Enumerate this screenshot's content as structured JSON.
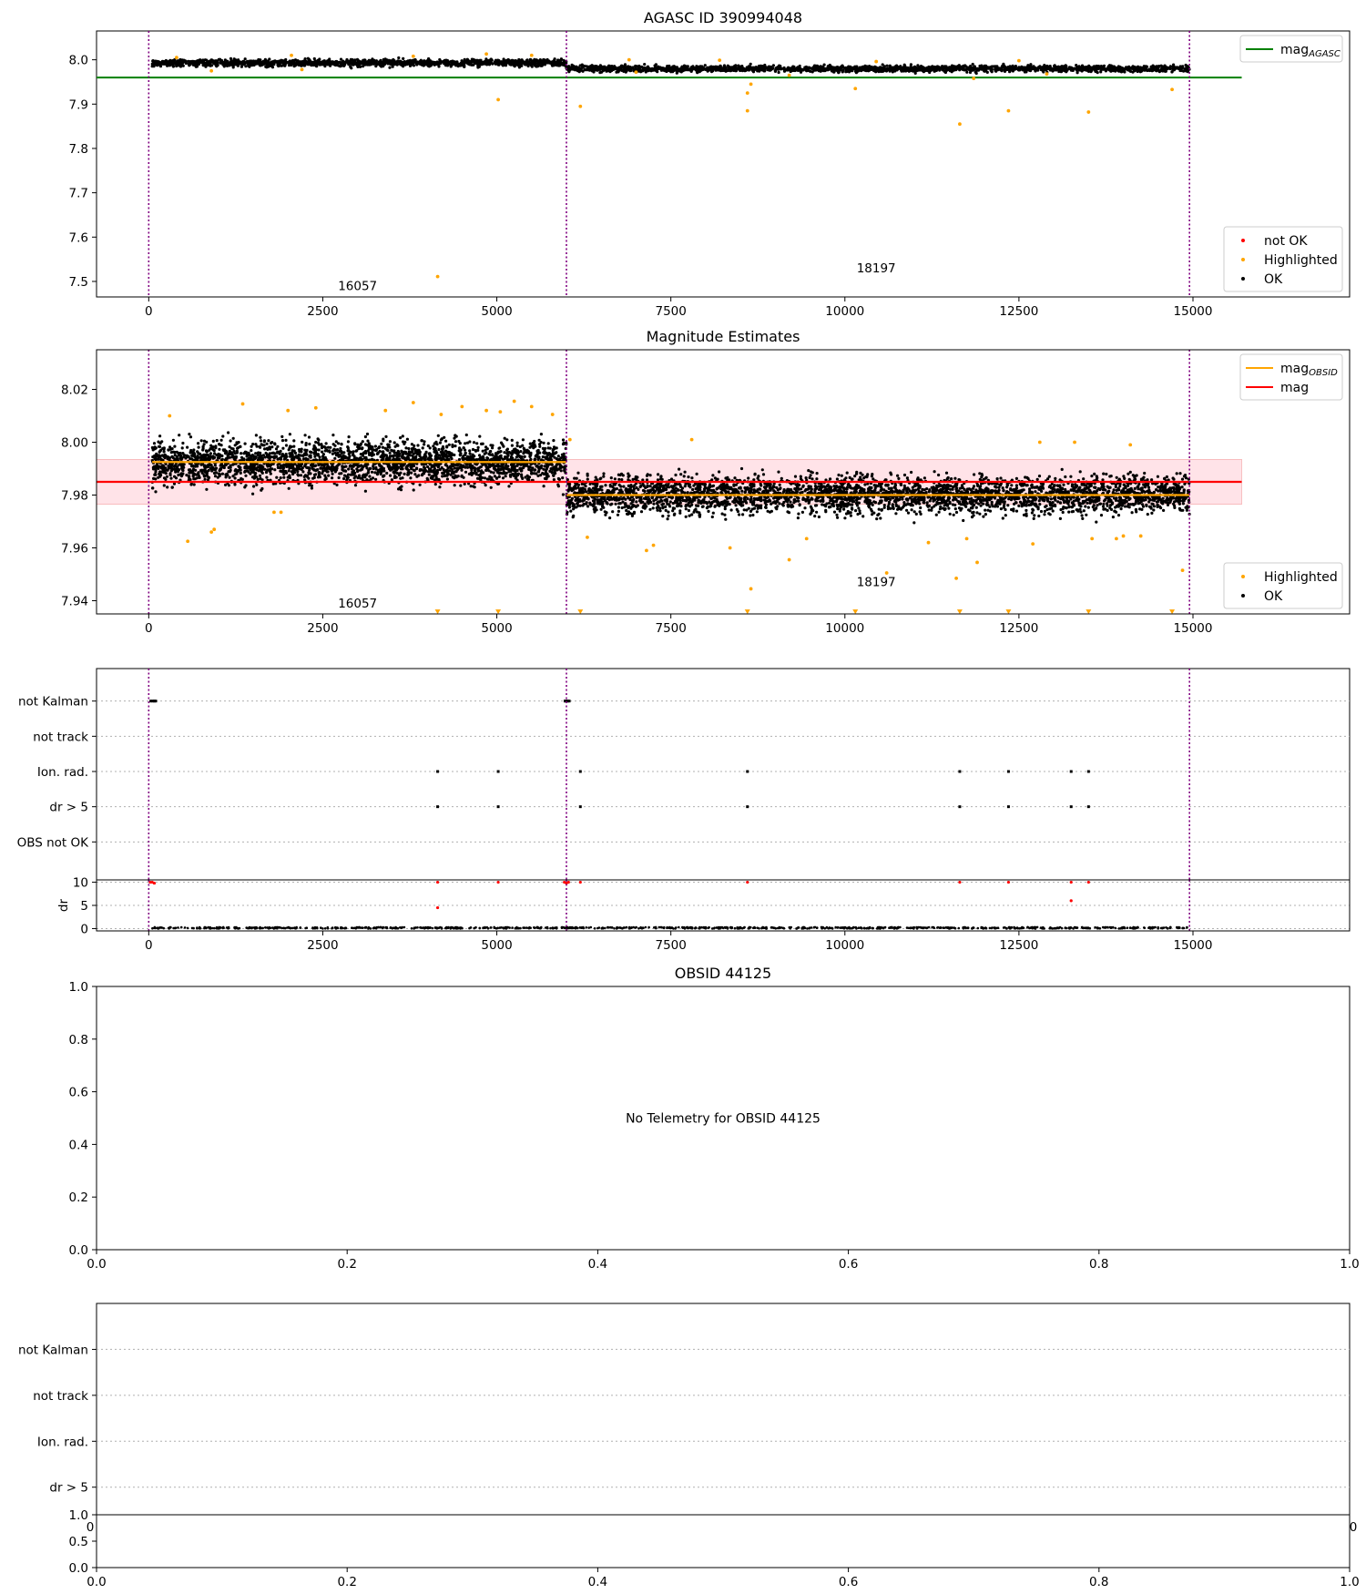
{
  "colors": {
    "ok": "#000000",
    "highlighted": "#ffa500",
    "not_ok": "#ff0000",
    "mag_agasc": "#008000",
    "mag": "#ff0000",
    "mag_obsid": "#ffa500",
    "band": "#ffc0cb",
    "obs_boundary": "#800080",
    "grid": "#b0b0b0"
  },
  "chart_data": [
    {
      "type": "scatter",
      "title": "AGASC ID 390994048",
      "xlim": [
        -750,
        17250
      ],
      "ylim": [
        7.465,
        8.065
      ],
      "xticks": [
        0,
        2500,
        5000,
        7500,
        10000,
        12500,
        15000
      ],
      "xtick_labels": [
        "0",
        "2500",
        "5000",
        "7500",
        "10000",
        "12500",
        "15000"
      ],
      "yticks": [
        7.5,
        7.6,
        7.7,
        7.8,
        7.9,
        8.0
      ],
      "ytick_labels": [
        "7.5",
        "7.6",
        "7.7",
        "7.8",
        "7.9",
        "8.0"
      ],
      "legends": [
        {
          "placement": "upper-right",
          "entries": [
            {
              "label": "mag",
              "sub": "AGASC",
              "color": "#008000",
              "marker": "line"
            }
          ]
        },
        {
          "placement": "lower-right",
          "entries": [
            {
              "label": "not OK",
              "color": "#ff0000",
              "marker": "dot"
            },
            {
              "label": "Highlighted",
              "color": "#ffa500",
              "marker": "dot"
            },
            {
              "label": "OK",
              "color": "#000000",
              "marker": "dot"
            }
          ]
        }
      ],
      "hlines": [
        {
          "y": 7.96,
          "x": [
            -750,
            15700
          ],
          "color": "#008000",
          "name": "mag_AGASC"
        }
      ],
      "vlines": [
        0,
        6000,
        14950
      ],
      "obs_labels": [
        {
          "text": "16057",
          "x": 3000,
          "y": 7.48
        },
        {
          "text": "18197",
          "x": 10450,
          "y": 7.52
        }
      ],
      "series": [
        {
          "name": "OK",
          "color": "#000000",
          "segments": [
            {
              "x": [
                50,
                6000
              ],
              "y_center": 7.993,
              "y_spread": 0.013
            },
            {
              "x": [
                6000,
                14950
              ],
              "y_center": 7.98,
              "y_spread": 0.012
            }
          ]
        },
        {
          "name": "Highlighted",
          "color": "#ffa500",
          "points": [
            [
              5020,
              7.91
            ],
            [
              6200,
              7.895
            ],
            [
              8600,
              7.925
            ],
            [
              8600,
              7.885
            ],
            [
              8650,
              7.945
            ],
            [
              10150,
              7.935
            ],
            [
              11650,
              7.855
            ],
            [
              12350,
              7.885
            ],
            [
              13500,
              7.882
            ],
            [
              14700,
              7.933
            ],
            [
              4150,
              7.511
            ],
            [
              900,
              7.975
            ],
            [
              2200,
              7.978
            ],
            [
              9200,
              7.965
            ],
            [
              11850,
              7.958
            ],
            [
              7000,
              7.972
            ],
            [
              12900,
              7.968
            ],
            [
              400,
              8.005
            ],
            [
              2050,
              8.01
            ],
            [
              3800,
              8.008
            ],
            [
              4850,
              8.013
            ],
            [
              5500,
              8.01
            ],
            [
              6900,
              8.0
            ],
            [
              8200,
              7.999
            ],
            [
              10450,
              7.996
            ],
            [
              12500,
              7.998
            ]
          ]
        }
      ]
    },
    {
      "type": "scatter",
      "title": "Magnitude Estimates",
      "xlim": [
        -750,
        17250
      ],
      "ylim": [
        7.935,
        8.035
      ],
      "xticks": [
        0,
        2500,
        5000,
        7500,
        10000,
        12500,
        15000
      ],
      "xtick_labels": [
        "0",
        "2500",
        "5000",
        "7500",
        "10000",
        "12500",
        "15000"
      ],
      "yticks": [
        7.94,
        7.96,
        7.98,
        8.0,
        8.02
      ],
      "ytick_labels": [
        "7.94",
        "7.96",
        "7.98",
        "8.00",
        "8.02"
      ],
      "legends": [
        {
          "placement": "upper-right",
          "entries": [
            {
              "label": "mag",
              "sub": "OBSID",
              "color": "#ffa500",
              "marker": "line"
            },
            {
              "label": "mag",
              "color": "#ff0000",
              "marker": "line"
            }
          ]
        },
        {
          "placement": "lower-right",
          "entries": [
            {
              "label": "Highlighted",
              "color": "#ffa500",
              "marker": "dot"
            },
            {
              "label": "OK",
              "color": "#000000",
              "marker": "dot"
            }
          ]
        }
      ],
      "band": {
        "y": [
          7.9765,
          7.9935
        ],
        "x": [
          -750,
          15700
        ],
        "color": "#ffc0cb"
      },
      "hlines": [
        {
          "y": 7.985,
          "x": [
            -750,
            15700
          ],
          "color": "#ff0000",
          "name": "mag"
        },
        {
          "y": 7.9925,
          "x": [
            50,
            6000
          ],
          "color": "#ffa500",
          "name": "mag_OBSID"
        },
        {
          "y": 7.98,
          "x": [
            6000,
            14950
          ],
          "color": "#ffa500",
          "name": "mag_OBSID"
        }
      ],
      "vlines": [
        0,
        6000,
        14950
      ],
      "obs_labels": [
        {
          "text": "16057",
          "x": 3000,
          "y": 7.9375
        },
        {
          "text": "18197",
          "x": 10450,
          "y": 7.9455
        }
      ],
      "series": [
        {
          "name": "OK",
          "color": "#000000",
          "segments": [
            {
              "x": [
                50,
                6000
              ],
              "y_center": 7.9925,
              "y_spread": 0.0135
            },
            {
              "x": [
                6000,
                14950
              ],
              "y_center": 7.98,
              "y_spread": 0.012
            }
          ]
        },
        {
          "name": "Highlighted",
          "color": "#ffa500",
          "points": [
            [
              560,
              7.9625
            ],
            [
              900,
              7.966
            ],
            [
              940,
              7.967
            ],
            [
              1800,
              7.9735
            ],
            [
              1900,
              7.9735
            ],
            [
              6300,
              7.964
            ],
            [
              7150,
              7.959
            ],
            [
              7250,
              7.961
            ],
            [
              8350,
              7.96
            ],
            [
              8650,
              7.9445
            ],
            [
              9200,
              7.9555
            ],
            [
              9450,
              7.9635
            ],
            [
              10600,
              7.9505
            ],
            [
              11600,
              7.9485
            ],
            [
              11750,
              7.9635
            ],
            [
              11900,
              7.9545
            ],
            [
              12700,
              7.9615
            ],
            [
              13550,
              7.9635
            ],
            [
              14000,
              7.9645
            ],
            [
              14850,
              7.9515
            ],
            [
              11200,
              7.962
            ],
            [
              13900,
              7.9635
            ],
            [
              14250,
              7.9645
            ],
            [
              1350,
              8.0145
            ],
            [
              2000,
              8.012
            ],
            [
              2400,
              8.013
            ],
            [
              3400,
              8.012
            ],
            [
              3800,
              8.015
            ],
            [
              4200,
              8.0105
            ],
            [
              4500,
              8.0135
            ],
            [
              4850,
              8.012
            ],
            [
              5050,
              8.0115
            ],
            [
              5250,
              8.0155
            ],
            [
              5500,
              8.0135
            ],
            [
              5800,
              8.0105
            ],
            [
              7800,
              8.001
            ],
            [
              12800,
              8.0
            ],
            [
              13300,
              8.0
            ],
            [
              14100,
              7.999
            ],
            [
              6050,
              8.001
            ],
            [
              300,
              8.01
            ]
          ]
        },
        {
          "name": "Highlighted (below range)",
          "color": "#ffa500",
          "marker": "triangle-down",
          "x": [
            4150,
            5020,
            6200,
            8600,
            10150,
            11650,
            12350,
            13500,
            14700
          ],
          "y": 7.936
        }
      ]
    },
    {
      "type": "scatter",
      "title": "",
      "xlim": [
        -750,
        17250
      ],
      "categories": [
        "not Kalman",
        "not track",
        "Ion. rad.",
        "dr > 5",
        "OBS not OK"
      ],
      "flag_points": {
        "not Kalman": [
          30,
          60,
          80,
          100,
          5980,
          6000,
          6020,
          6040
        ],
        "not track": [],
        "Ion. rad.": [
          4150,
          5020,
          6200,
          8600,
          11650,
          12350,
          13250,
          13500
        ],
        "dr > 5": [
          4150,
          5020,
          6200,
          8600,
          11650,
          12350,
          13250,
          13500
        ],
        "OBS not OK": []
      },
      "vlines": [
        0,
        6000,
        14950
      ]
    },
    {
      "type": "scatter",
      "title": "",
      "ylabel": "dr",
      "xlim": [
        -750,
        17250
      ],
      "ylim": [
        -0.5,
        10.5
      ],
      "xticks": [
        0,
        2500,
        5000,
        7500,
        10000,
        12500,
        15000
      ],
      "xtick_labels": [
        "0",
        "2500",
        "5000",
        "7500",
        "10000",
        "12500",
        "15000"
      ],
      "yticks": [
        0,
        5,
        10
      ],
      "ytick_labels": [
        "0",
        "5",
        "10"
      ],
      "vlines": [
        0,
        6000,
        14950
      ],
      "series": [
        {
          "name": "OK",
          "color": "#000000",
          "segments": [
            {
              "x": [
                50,
                14950
              ],
              "y_center": 0.15,
              "y_spread": 0.3
            }
          ]
        },
        {
          "name": "not OK",
          "color": "#ff0000",
          "points": [
            [
              4150,
              10
            ],
            [
              4150,
              4.5
            ],
            [
              5020,
              10
            ],
            [
              6200,
              10
            ],
            [
              8600,
              10
            ],
            [
              11650,
              10
            ],
            [
              12350,
              10
            ],
            [
              13250,
              10
            ],
            [
              13250,
              6
            ],
            [
              13500,
              10
            ],
            [
              20,
              10
            ],
            [
              50,
              10
            ],
            [
              80,
              9.8
            ],
            [
              5970,
              10
            ],
            [
              6000,
              9.8
            ],
            [
              6030,
              10
            ]
          ]
        }
      ]
    },
    {
      "type": "scatter",
      "title": "OBSID 44125",
      "annotation": "No Telemetry for OBSID 44125",
      "xlim": [
        0,
        1
      ],
      "ylim": [
        0,
        1
      ],
      "xticks": [
        0,
        0.2,
        0.4,
        0.6,
        0.8,
        1.0
      ],
      "xtick_labels": [
        "0.0",
        "0.2",
        "0.4",
        "0.6",
        "0.8",
        "1.0"
      ],
      "yticks": [
        0,
        0.2,
        0.4,
        0.6,
        0.8,
        1.0
      ],
      "ytick_labels": [
        "0.0",
        "0.2",
        "0.4",
        "0.6",
        "0.8",
        "1.0"
      ]
    },
    {
      "type": "scatter",
      "title": "",
      "categories": [
        "not Kalman",
        "not track",
        "Ion. rad.",
        "dr > 5"
      ],
      "xtick_labels_clipped": [
        "0",
        "0"
      ]
    },
    {
      "type": "scatter",
      "title": "",
      "xlim": [
        0,
        1
      ],
      "ylim": [
        0,
        1
      ],
      "xticks": [
        0,
        0.2,
        0.4,
        0.6,
        0.8,
        1.0
      ],
      "xtick_labels": [
        "0.0",
        "0.2",
        "0.4",
        "0.6",
        "0.8",
        "1.0"
      ],
      "yticks": [
        0,
        0.5,
        1.0
      ],
      "ytick_labels": [
        "0.0",
        "0.5",
        "1.0"
      ]
    }
  ]
}
